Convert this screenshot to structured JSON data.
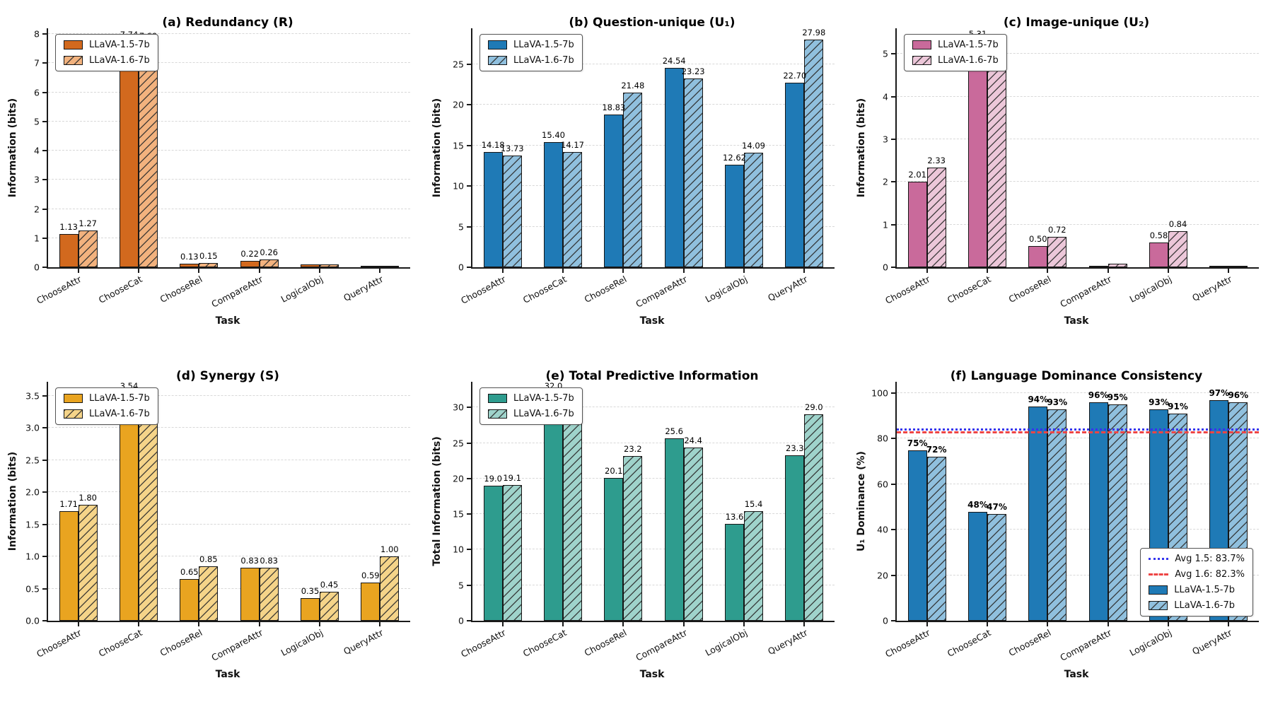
{
  "series_names": [
    "LLaVA-1.5-7b",
    "LLaVA-1.6-7b"
  ],
  "tasks": [
    "ChooseAttr",
    "ChooseCat",
    "ChooseRel",
    "CompareAttr",
    "LogicalObj",
    "QueryAttr"
  ],
  "chart_data": [
    {
      "id": "a",
      "type": "bar",
      "title": "(a) Redundancy (R)",
      "xlabel": "Task",
      "ylabel": "Information (bits)",
      "categories": [
        "ChooseAttr",
        "ChooseCat",
        "ChooseRel",
        "CompareAttr",
        "LogicalObj",
        "QueryAttr"
      ],
      "ylim": [
        0,
        8.2
      ],
      "ytick_values": [
        0,
        1,
        2,
        3,
        4,
        5,
        6,
        7,
        8
      ],
      "ytick_labels": [
        "0",
        "1",
        "2",
        "3",
        "4",
        "5",
        "6",
        "7",
        "8"
      ],
      "grid": true,
      "legend_position": "top-left",
      "series": [
        {
          "name": "LLaVA-1.5-7b",
          "color": "#D2691E",
          "hatch": false,
          "values": [
            1.13,
            7.74,
            0.13,
            0.22,
            0.09,
            0.04
          ],
          "labels": [
            "1.13",
            "7.74",
            "0.13",
            "0.22",
            "",
            ""
          ]
        },
        {
          "name": "LLaVA-1.6-7b",
          "color": "#F2B27E",
          "hatch": true,
          "values": [
            1.27,
            7.69,
            0.15,
            0.26,
            0.09,
            0.04
          ],
          "labels": [
            "1.27",
            "7.69",
            "0.15",
            "0.26",
            "",
            ""
          ]
        }
      ]
    },
    {
      "id": "b",
      "type": "bar",
      "title": "(b) Question-unique (U₁)",
      "xlabel": "Task",
      "ylabel": "Information (bits)",
      "categories": [
        "ChooseAttr",
        "ChooseCat",
        "ChooseRel",
        "CompareAttr",
        "LogicalObj",
        "QueryAttr"
      ],
      "ylim": [
        0,
        29.4
      ],
      "ytick_values": [
        0,
        5,
        10,
        15,
        20,
        25
      ],
      "ytick_labels": [
        "0",
        "5",
        "10",
        "15",
        "20",
        "25"
      ],
      "grid": true,
      "legend_position": "top-left",
      "series": [
        {
          "name": "LLaVA-1.5-7b",
          "color": "#1F7AB6",
          "hatch": false,
          "values": [
            14.18,
            15.4,
            18.83,
            24.54,
            12.62,
            22.7
          ],
          "labels": [
            "14.18",
            "15.40",
            "18.83",
            "24.54",
            "12.62",
            "22.70"
          ]
        },
        {
          "name": "LLaVA-1.6-7b",
          "color": "#90C0DE",
          "hatch": true,
          "values": [
            13.73,
            14.17,
            21.48,
            23.23,
            14.09,
            27.98
          ],
          "labels": [
            "13.73",
            "14.17",
            "21.48",
            "23.23",
            "14.09",
            "27.98"
          ]
        }
      ]
    },
    {
      "id": "c",
      "type": "bar",
      "title": "(c) Image-unique (U₂)",
      "xlabel": "Task",
      "ylabel": "Information (bits)",
      "categories": [
        "ChooseAttr",
        "ChooseCat",
        "ChooseRel",
        "CompareAttr",
        "LogicalObj",
        "QueryAttr"
      ],
      "ylim": [
        0,
        5.6
      ],
      "ytick_values": [
        0,
        1,
        2,
        3,
        4,
        5
      ],
      "ytick_labels": [
        "0",
        "1",
        "2",
        "3",
        "4",
        "5"
      ],
      "grid": true,
      "legend_position": "top-left",
      "series": [
        {
          "name": "LLaVA-1.5-7b",
          "color": "#C96A9B",
          "hatch": false,
          "values": [
            2.01,
            5.31,
            0.5,
            0.02,
            0.58,
            0.01
          ],
          "labels": [
            "2.01",
            "5.31",
            "0.50",
            "",
            "0.58",
            ""
          ]
        },
        {
          "name": "LLaVA-1.6-7b",
          "color": "#ECC7D9",
          "hatch": true,
          "values": [
            2.33,
            5.2,
            0.72,
            0.09,
            0.84,
            0.01
          ],
          "labels": [
            "2.33",
            "5.20",
            "0.72",
            "",
            "0.84",
            ""
          ]
        }
      ]
    },
    {
      "id": "d",
      "type": "bar",
      "title": "(d) Synergy (S)",
      "xlabel": "Task",
      "ylabel": "Information (bits)",
      "categories": [
        "ChooseAttr",
        "ChooseCat",
        "ChooseRel",
        "CompareAttr",
        "LogicalObj",
        "QueryAttr"
      ],
      "ylim": [
        0,
        3.72
      ],
      "ytick_values": [
        0,
        0.5,
        1.0,
        1.5,
        2.0,
        2.5,
        3.0,
        3.5
      ],
      "ytick_labels": [
        "0.0",
        "0.5",
        "1.0",
        "1.5",
        "2.0",
        "2.5",
        "3.0",
        "3.5"
      ],
      "grid": true,
      "legend_position": "top-left",
      "series": [
        {
          "name": "LLaVA-1.5-7b",
          "color": "#E9A420",
          "hatch": false,
          "values": [
            1.71,
            3.54,
            0.65,
            0.83,
            0.35,
            0.59
          ],
          "labels": [
            "1.71",
            "3.54",
            "0.65",
            "0.83",
            "0.35",
            "0.59"
          ]
        },
        {
          "name": "LLaVA-1.6-7b",
          "color": "#F5D489",
          "hatch": true,
          "values": [
            1.8,
            3.3,
            0.85,
            0.83,
            0.45,
            1.0
          ],
          "labels": [
            "1.80",
            "3.30",
            "0.85",
            "0.83",
            "0.45",
            "1.00"
          ]
        }
      ]
    },
    {
      "id": "e",
      "type": "bar",
      "title": "(e) Total Predictive Information",
      "xlabel": "Task",
      "ylabel": "Total Information (bits)",
      "categories": [
        "ChooseAttr",
        "ChooseCat",
        "ChooseRel",
        "CompareAttr",
        "LogicalObj",
        "QueryAttr"
      ],
      "ylim": [
        0,
        33.6
      ],
      "ytick_values": [
        0,
        5,
        10,
        15,
        20,
        25,
        30
      ],
      "ytick_labels": [
        "0",
        "5",
        "10",
        "15",
        "20",
        "25",
        "30"
      ],
      "grid": true,
      "legend_position": "top-left",
      "series": [
        {
          "name": "LLaVA-1.5-7b",
          "color": "#2E9C8E",
          "hatch": false,
          "values": [
            19.0,
            32.0,
            20.1,
            25.6,
            13.6,
            23.3
          ],
          "labels": [
            "19.0",
            "32.0",
            "20.1",
            "25.6",
            "13.6",
            "23.3"
          ]
        },
        {
          "name": "LLaVA-1.6-7b",
          "color": "#9FD3CB",
          "hatch": true,
          "values": [
            19.1,
            30.4,
            23.2,
            24.4,
            15.4,
            29.0
          ],
          "labels": [
            "19.1",
            "30.4",
            "23.2",
            "24.4",
            "15.4",
            "29.0"
          ]
        }
      ]
    },
    {
      "id": "f",
      "type": "bar",
      "title": "(f) Language Dominance Consistency",
      "xlabel": "Task",
      "ylabel": "U₁ Dominance (%)",
      "categories": [
        "ChooseAttr",
        "ChooseCat",
        "ChooseRel",
        "CompareAttr",
        "LogicalObj",
        "QueryAttr"
      ],
      "ylim": [
        0,
        105
      ],
      "ytick_values": [
        0,
        20,
        40,
        60,
        80,
        100
      ],
      "ytick_labels": [
        "0",
        "20",
        "40",
        "60",
        "80",
        "100"
      ],
      "grid": true,
      "legend_position": "bottom-right",
      "bold_value_labels": true,
      "ref_lines": [
        {
          "label": "Avg 1.5: 83.7%",
          "value": 83.7,
          "color": "#3535EE",
          "style": "dotted"
        },
        {
          "label": "Avg 1.6: 82.3%",
          "value": 82.3,
          "color": "#EE4545",
          "style": "dashed"
        }
      ],
      "series": [
        {
          "name": "LLaVA-1.5-7b",
          "color": "#1F7AB6",
          "hatch": false,
          "values": [
            75,
            48,
            94,
            96,
            93,
            97
          ],
          "labels": [
            "75%",
            "48%",
            "94%",
            "96%",
            "93%",
            "97%"
          ]
        },
        {
          "name": "LLaVA-1.6-7b",
          "color": "#90C0DE",
          "hatch": true,
          "values": [
            72,
            47,
            93,
            95,
            91,
            96
          ],
          "labels": [
            "72%",
            "47%",
            "93%",
            "95%",
            "91%",
            "96%"
          ]
        }
      ]
    }
  ]
}
